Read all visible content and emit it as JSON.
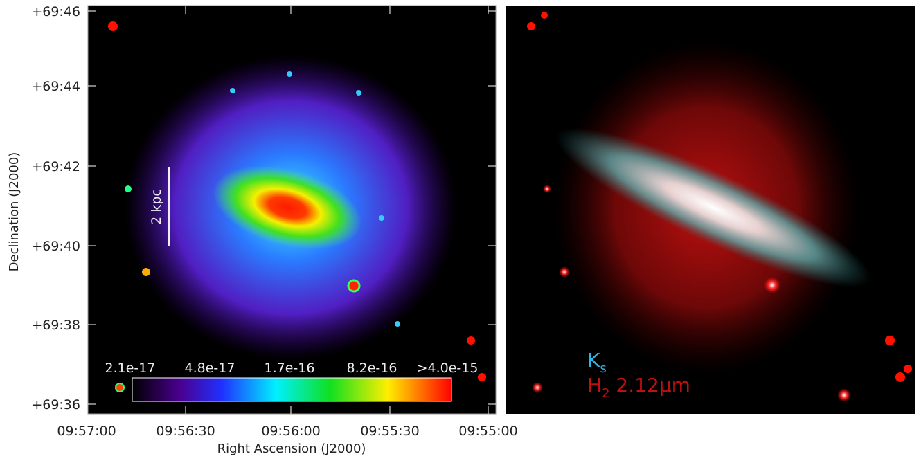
{
  "left_panel": {
    "y_axis": {
      "title": "Declination (J2000)",
      "ticks": [
        "+69:46",
        "+69:44",
        "+69:42",
        "+69:40",
        "+69:38",
        "+69:36"
      ]
    },
    "x_axis": {
      "title": "Right Ascension (J2000)",
      "ticks": [
        "09:57:00",
        "09:56:30",
        "09:56:00",
        "09:55:30",
        "09:55:00"
      ]
    },
    "scale_bar": "2 kpc",
    "colorbar": {
      "labels": [
        "2.1e-17",
        "4.8e-17",
        "1.7e-16",
        "8.2e-16",
        ">4.0e-15"
      ]
    }
  },
  "right_panel": {
    "legend": [
      {
        "main": "K",
        "sub": "s"
      },
      {
        "main": "H",
        "sub": "2",
        "rest": " 2.12μm"
      }
    ]
  }
}
